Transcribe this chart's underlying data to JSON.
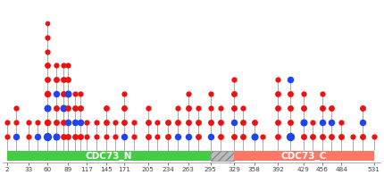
{
  "x_ticks": [
    2,
    33,
    60,
    89,
    117,
    145,
    171,
    205,
    234,
    263,
    295,
    329,
    358,
    392,
    429,
    456,
    484,
    531
  ],
  "xlim": [
    -5,
    540
  ],
  "background_color": "white",
  "stem_color": "#aaaaaa",
  "red_color": "#ee1111",
  "blue_color": "#2244ee",
  "domain_green": "#44cc44",
  "domain_red": "#ff7766",
  "domain_gray": "#bbbbbb",
  "stems_detail": [
    [
      2,
      [
        [
          1,
          "r",
          1.0
        ],
        [
          2,
          "r",
          1.0
        ]
      ]
    ],
    [
      15,
      [
        [
          1,
          "b",
          1.2
        ],
        [
          2,
          "r",
          1.0
        ],
        [
          3,
          "r",
          1.0
        ]
      ]
    ],
    [
      33,
      [
        [
          1,
          "r",
          1.0
        ],
        [
          2,
          "r",
          1.0
        ]
      ]
    ],
    [
      45,
      [
        [
          1,
          "b",
          1.2
        ],
        [
          2,
          "r",
          1.0
        ]
      ]
    ],
    [
      60,
      [
        [
          1,
          "b",
          1.5
        ],
        [
          2,
          "r",
          1.2
        ],
        [
          3,
          "b",
          1.3
        ],
        [
          4,
          "r",
          1.2
        ],
        [
          5,
          "r",
          1.1
        ],
        [
          6,
          "r",
          1.1
        ],
        [
          7,
          "r",
          1.0
        ],
        [
          8,
          "r",
          1.0
        ],
        [
          9,
          "r",
          0.9
        ]
      ]
    ],
    [
      72,
      [
        [
          1,
          "b",
          1.3
        ],
        [
          2,
          "r",
          1.1
        ],
        [
          3,
          "r",
          1.1
        ],
        [
          4,
          "b",
          1.2
        ],
        [
          5,
          "r",
          1.1
        ],
        [
          6,
          "r",
          1.0
        ]
      ]
    ],
    [
      83,
      [
        [
          1,
          "r",
          1.1
        ],
        [
          2,
          "r",
          1.1
        ],
        [
          3,
          "b",
          1.3
        ],
        [
          4,
          "r",
          1.1
        ],
        [
          5,
          "r",
          1.1
        ],
        [
          6,
          "r",
          1.0
        ]
      ]
    ],
    [
      89,
      [
        [
          1,
          "r",
          1.1
        ],
        [
          2,
          "b",
          1.2
        ],
        [
          3,
          "r",
          1.1
        ],
        [
          4,
          "b",
          1.3
        ],
        [
          5,
          "r",
          1.1
        ],
        [
          6,
          "r",
          1.0
        ]
      ]
    ],
    [
      100,
      [
        [
          1,
          "r",
          1.1
        ],
        [
          2,
          "b",
          1.2
        ],
        [
          3,
          "r",
          1.1
        ],
        [
          4,
          "r",
          1.0
        ]
      ]
    ],
    [
      107,
      [
        [
          1,
          "r",
          1.1
        ],
        [
          2,
          "b",
          1.2
        ],
        [
          3,
          "r",
          1.1
        ],
        [
          4,
          "r",
          1.0
        ]
      ]
    ],
    [
      117,
      [
        [
          1,
          "r",
          1.0
        ],
        [
          2,
          "r",
          1.0
        ]
      ]
    ],
    [
      130,
      [
        [
          1,
          "r",
          1.0
        ],
        [
          2,
          "r",
          1.0
        ]
      ]
    ],
    [
      145,
      [
        [
          1,
          "r",
          1.0
        ],
        [
          2,
          "r",
          1.1
        ],
        [
          3,
          "r",
          1.1
        ]
      ]
    ],
    [
      158,
      [
        [
          1,
          "r",
          1.0
        ],
        [
          2,
          "r",
          1.0
        ]
      ]
    ],
    [
      171,
      [
        [
          1,
          "b",
          1.2
        ],
        [
          2,
          "r",
          1.1
        ],
        [
          3,
          "r",
          1.1
        ],
        [
          4,
          "r",
          1.0
        ]
      ]
    ],
    [
      185,
      [
        [
          1,
          "r",
          1.0
        ],
        [
          2,
          "r",
          1.0
        ]
      ]
    ],
    [
      205,
      [
        [
          1,
          "r",
          1.1
        ],
        [
          2,
          "r",
          1.1
        ],
        [
          3,
          "r",
          1.0
        ]
      ]
    ],
    [
      218,
      [
        [
          1,
          "r",
          1.0
        ],
        [
          2,
          "r",
          1.0
        ]
      ]
    ],
    [
      234,
      [
        [
          1,
          "r",
          1.1
        ],
        [
          2,
          "r",
          1.1
        ]
      ]
    ],
    [
      248,
      [
        [
          1,
          "b",
          1.2
        ],
        [
          2,
          "r",
          1.1
        ],
        [
          3,
          "r",
          1.0
        ]
      ]
    ],
    [
      263,
      [
        [
          1,
          "b",
          1.2
        ],
        [
          2,
          "r",
          1.1
        ],
        [
          3,
          "r",
          1.1
        ],
        [
          4,
          "r",
          1.0
        ]
      ]
    ],
    [
      278,
      [
        [
          1,
          "r",
          1.1
        ],
        [
          2,
          "r",
          1.1
        ],
        [
          3,
          "r",
          1.0
        ]
      ]
    ],
    [
      295,
      [
        [
          1,
          "b",
          1.2
        ],
        [
          2,
          "r",
          1.1
        ],
        [
          3,
          "r",
          1.0
        ],
        [
          4,
          "r",
          1.0
        ]
      ]
    ],
    [
      310,
      [
        [
          1,
          "r",
          1.1
        ],
        [
          2,
          "r",
          1.1
        ],
        [
          3,
          "r",
          1.0
        ]
      ]
    ],
    [
      329,
      [
        [
          1,
          "r",
          1.1
        ],
        [
          2,
          "b",
          1.2
        ],
        [
          3,
          "r",
          1.1
        ],
        [
          4,
          "r",
          1.1
        ],
        [
          5,
          "r",
          1.0
        ]
      ]
    ],
    [
      342,
      [
        [
          1,
          "r",
          1.1
        ],
        [
          2,
          "r",
          1.1
        ],
        [
          3,
          "r",
          1.0
        ]
      ]
    ],
    [
      358,
      [
        [
          1,
          "b",
          1.3
        ],
        [
          2,
          "r",
          1.1
        ]
      ]
    ],
    [
      370,
      [
        [
          1,
          "r",
          1.0
        ]
      ]
    ],
    [
      392,
      [
        [
          1,
          "r",
          1.1
        ],
        [
          2,
          "r",
          1.1
        ],
        [
          3,
          "r",
          1.1
        ],
        [
          4,
          "r",
          1.1
        ],
        [
          5,
          "r",
          1.0
        ]
      ]
    ],
    [
      410,
      [
        [
          1,
          "b",
          1.5
        ],
        [
          2,
          "r",
          1.1
        ],
        [
          3,
          "r",
          1.1
        ],
        [
          4,
          "r",
          1.1
        ],
        [
          5,
          "b",
          1.2
        ]
      ]
    ],
    [
      429,
      [
        [
          1,
          "r",
          1.1
        ],
        [
          2,
          "b",
          1.3
        ],
        [
          3,
          "r",
          1.1
        ],
        [
          4,
          "r",
          1.0
        ]
      ]
    ],
    [
      442,
      [
        [
          1,
          "r",
          1.1
        ],
        [
          2,
          "r",
          1.0
        ]
      ]
    ],
    [
      456,
      [
        [
          1,
          "r",
          1.1
        ],
        [
          2,
          "b",
          1.2
        ],
        [
          3,
          "r",
          1.1
        ],
        [
          4,
          "r",
          1.0
        ]
      ]
    ],
    [
      470,
      [
        [
          1,
          "r",
          1.1
        ],
        [
          2,
          "b",
          1.2
        ],
        [
          3,
          "r",
          1.1
        ]
      ]
    ],
    [
      484,
      [
        [
          1,
          "r",
          1.1
        ],
        [
          2,
          "r",
          1.0
        ]
      ]
    ],
    [
      500,
      [
        [
          1,
          "r",
          1.0
        ]
      ]
    ],
    [
      515,
      [
        [
          1,
          "r",
          1.1
        ],
        [
          2,
          "b",
          1.2
        ],
        [
          3,
          "r",
          1.1
        ]
      ]
    ],
    [
      531,
      [
        [
          1,
          "r",
          1.0
        ]
      ]
    ]
  ]
}
